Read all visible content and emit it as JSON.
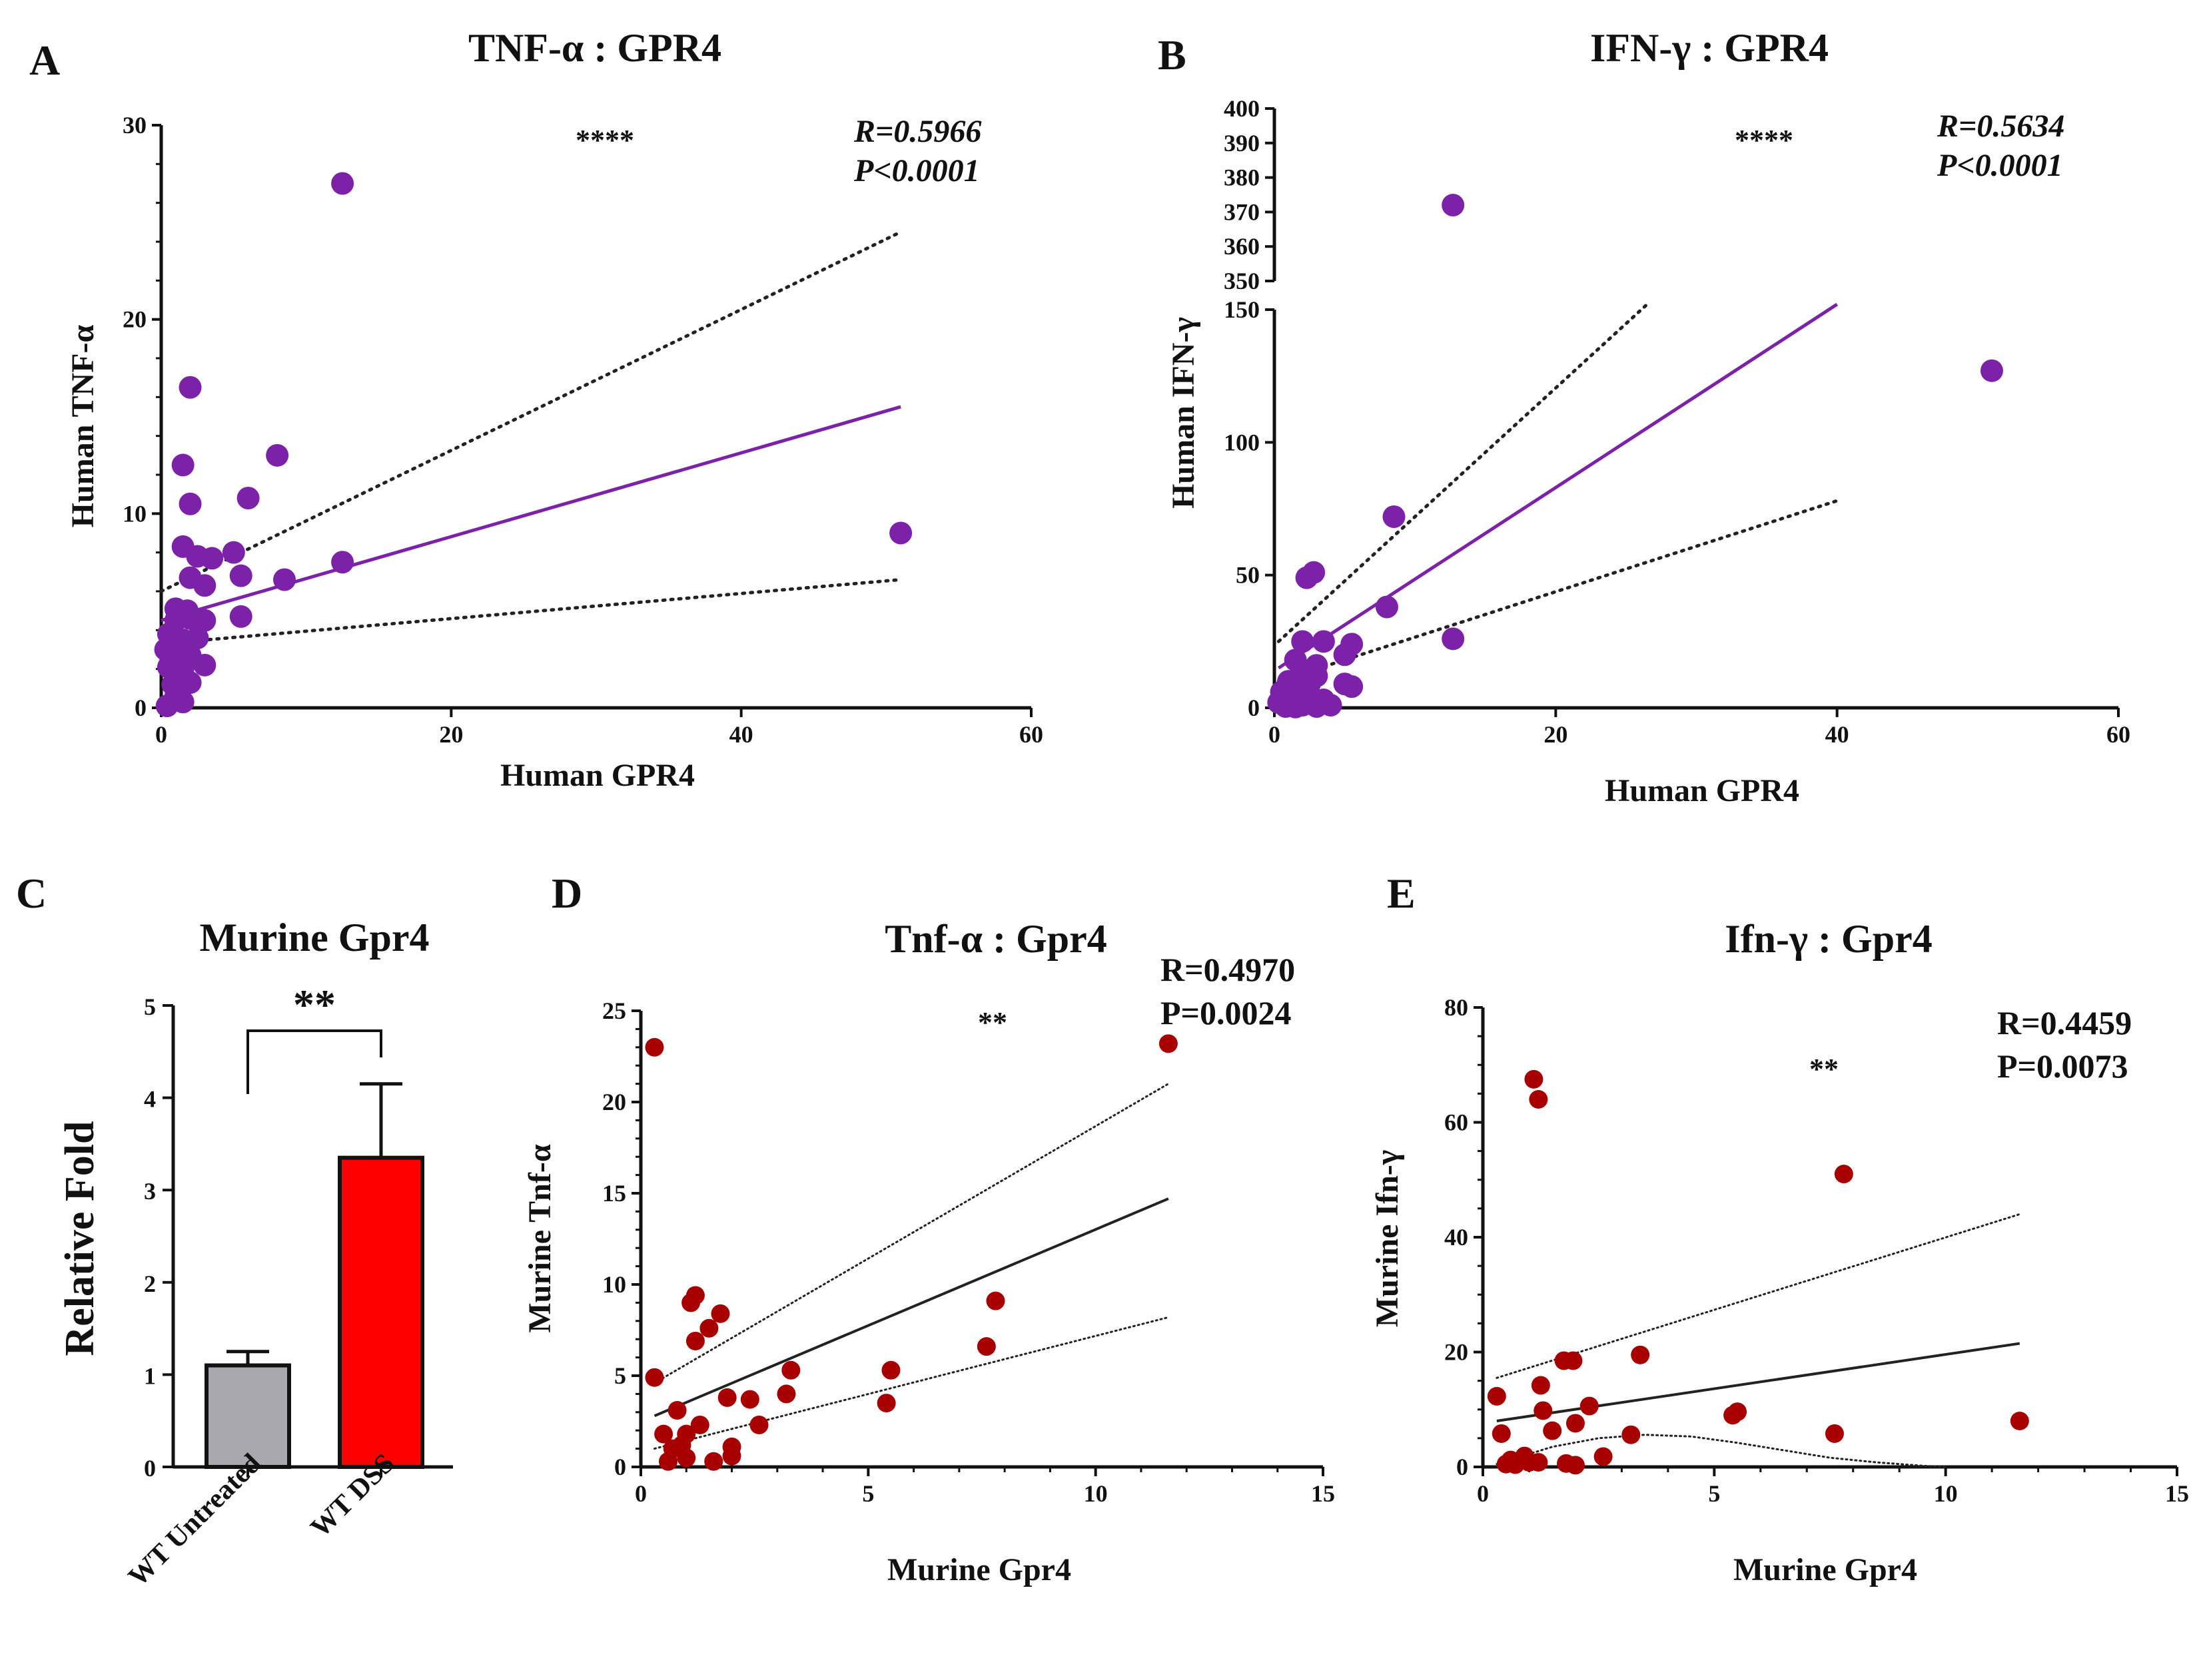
{
  "colors": {
    "purple": "#7B22A8",
    "red": "#A80000",
    "black": "#222222",
    "grey": "#A8A8AE",
    "bar_red": "#FF0000"
  },
  "chart_data": [
    {
      "id": "A",
      "type": "scatter",
      "panel_label": "A",
      "title": "TNF-α : GPR4",
      "xlabel": "Human GPR4",
      "ylabel": "Human TNF-α",
      "xlim": [
        0,
        60
      ],
      "ylim": [
        0,
        30
      ],
      "xticks": [
        0,
        20,
        40,
        60
      ],
      "yticks": [
        0,
        10,
        20,
        30
      ],
      "significance": "****",
      "stats": {
        "R": "R=0.5966",
        "P": "P<0.0001"
      },
      "fit": {
        "x": [
          0,
          51
        ],
        "y": [
          4.5,
          15.5
        ]
      },
      "ci_upper": {
        "x": [
          0,
          51
        ],
        "y": [
          6.0,
          24.5
        ]
      },
      "ci_lower": {
        "x": [
          0,
          51
        ],
        "y": [
          3.3,
          6.6
        ]
      },
      "points": [
        [
          12.5,
          27
        ],
        [
          2,
          16.5
        ],
        [
          1.5,
          12.5
        ],
        [
          2,
          10.5
        ],
        [
          8,
          13
        ],
        [
          6,
          10.8
        ],
        [
          1.5,
          8.3
        ],
        [
          2.5,
          7.8
        ],
        [
          3.5,
          7.7
        ],
        [
          5,
          8
        ],
        [
          12.5,
          7.5
        ],
        [
          8.5,
          6.6
        ],
        [
          5.5,
          6.8
        ],
        [
          2,
          6.7
        ],
        [
          3,
          6.3
        ],
        [
          1,
          5.1
        ],
        [
          1.8,
          5.0
        ],
        [
          1,
          4.5
        ],
        [
          2,
          4.6
        ],
        [
          3,
          4.5
        ],
        [
          5.5,
          4.7
        ],
        [
          0.5,
          3.8
        ],
        [
          1.5,
          3.5
        ],
        [
          2.5,
          3.6
        ],
        [
          0.3,
          3.0
        ],
        [
          1,
          2.8
        ],
        [
          2,
          2.7
        ],
        [
          0.5,
          2.1
        ],
        [
          1.5,
          2.0
        ],
        [
          3,
          2.2
        ],
        [
          0.8,
          1.2
        ],
        [
          2,
          1.3
        ],
        [
          1,
          0.6
        ],
        [
          1.5,
          0.3
        ],
        [
          0.4,
          0.1
        ],
        [
          1.2,
          0.5
        ],
        [
          51,
          9
        ]
      ]
    },
    {
      "id": "B",
      "type": "scatter",
      "panel_label": "B",
      "title": "IFN-γ : GPR4",
      "xlabel": "Human GPR4",
      "ylabel": "Human IFN-γ",
      "xlim": [
        0,
        60
      ],
      "ylim_lower": [
        0,
        150
      ],
      "ylim_upper": [
        350,
        400
      ],
      "xticks": [
        0,
        20,
        40,
        60
      ],
      "yticks_lower": [
        0,
        50,
        100,
        150
      ],
      "yticks_upper": [
        350,
        360,
        370,
        380,
        390,
        400
      ],
      "significance": "****",
      "stats": {
        "R": "R=0.5634",
        "P": "P<0.0001"
      },
      "fit": {
        "x": [
          0.3,
          40
        ],
        "y": [
          15,
          152
        ]
      },
      "ci_upper": {
        "x": [
          0.3,
          26.5
        ],
        "y": [
          25,
          152
        ]
      },
      "ci_lower": {
        "x": [
          0.3,
          40
        ],
        "y": [
          10,
          78
        ]
      },
      "points": [
        [
          12.7,
          372
        ],
        [
          51,
          127
        ],
        [
          8.5,
          72
        ],
        [
          2.3,
          49
        ],
        [
          2.8,
          51
        ],
        [
          8,
          38
        ],
        [
          12.7,
          26
        ],
        [
          2,
          25
        ],
        [
          3.5,
          25
        ],
        [
          5.5,
          24
        ],
        [
          1.5,
          18
        ],
        [
          3,
          16
        ],
        [
          5,
          20
        ],
        [
          2,
          14
        ],
        [
          3,
          12
        ],
        [
          1,
          10
        ],
        [
          2.5,
          9
        ],
        [
          5,
          9
        ],
        [
          5.5,
          8
        ],
        [
          0.5,
          6
        ],
        [
          1.5,
          5
        ],
        [
          2.5,
          4
        ],
        [
          3.5,
          3
        ],
        [
          0.3,
          2
        ],
        [
          1,
          1.5
        ],
        [
          2,
          1
        ],
        [
          4,
          1
        ],
        [
          0.8,
          0.5
        ],
        [
          1.5,
          0.3
        ],
        [
          3,
          0.5
        ]
      ]
    },
    {
      "id": "C",
      "type": "bar",
      "panel_label": "C",
      "title": "Murine Gpr4",
      "ylabel": "Relative Fold",
      "categories": [
        "WT Untreated",
        "WT DSS"
      ],
      "values": [
        1.1,
        3.35
      ],
      "errors": [
        0.15,
        0.8
      ],
      "ylim": [
        0,
        5
      ],
      "yticks": [
        0,
        1,
        2,
        3,
        4,
        5
      ],
      "significance": "**"
    },
    {
      "id": "D",
      "type": "scatter",
      "panel_label": "D",
      "title": "Tnf-α : Gpr4",
      "xlabel": "Murine Gpr4",
      "ylabel": "Murine Tnf-α",
      "xlim": [
        0,
        15
      ],
      "ylim": [
        0,
        25
      ],
      "xticks": [
        0,
        5,
        10,
        15
      ],
      "yticks": [
        0,
        5,
        10,
        15,
        20,
        25
      ],
      "significance": "**",
      "stats": {
        "R": "R=0.4970",
        "P": "P=0.0024"
      },
      "fit": {
        "x": [
          0.3,
          11.6
        ],
        "y": [
          2.8,
          14.7
        ]
      },
      "ci_upper": {
        "x": [
          0.3,
          11.6
        ],
        "y": [
          4.6,
          21
        ]
      },
      "ci_lower": {
        "x": [
          0.3,
          11.6
        ],
        "y": [
          1.0,
          8.2
        ]
      },
      "points": [
        [
          0.3,
          23
        ],
        [
          11.6,
          23.2
        ],
        [
          1.2,
          9.4
        ],
        [
          1.1,
          9.0
        ],
        [
          1.75,
          8.4
        ],
        [
          1.5,
          7.6
        ],
        [
          1.2,
          6.9
        ],
        [
          7.8,
          9.1
        ],
        [
          7.6,
          6.6
        ],
        [
          5.5,
          5.3
        ],
        [
          5.4,
          3.5
        ],
        [
          3.3,
          5.3
        ],
        [
          3.2,
          4.0
        ],
        [
          0.3,
          4.9
        ],
        [
          1.9,
          3.8
        ],
        [
          2.4,
          3.7
        ],
        [
          2.6,
          2.3
        ],
        [
          0.5,
          1.8
        ],
        [
          0.8,
          3.1
        ],
        [
          1.3,
          2.3
        ],
        [
          1.0,
          1.8
        ],
        [
          0.7,
          1.0
        ],
        [
          0.9,
          1.2
        ],
        [
          2.0,
          1.1
        ],
        [
          2.0,
          0.6
        ],
        [
          0.6,
          0.3
        ],
        [
          1.0,
          0.5
        ],
        [
          1.6,
          0.3
        ]
      ]
    },
    {
      "id": "E",
      "type": "scatter",
      "panel_label": "E",
      "title": "Ifn-γ : Gpr4",
      "xlabel": "Murine Gpr4",
      "ylabel": "Murine Ifn-γ",
      "xlim": [
        0,
        15
      ],
      "ylim": [
        0,
        80
      ],
      "xticks": [
        0,
        5,
        10,
        15
      ],
      "yticks": [
        0,
        20,
        40,
        60,
        80
      ],
      "significance": "**",
      "stats": {
        "R": "R=0.4459",
        "P": "P=0.0073"
      },
      "fit": {
        "x": [
          0.3,
          11.6
        ],
        "y": [
          8,
          21.5
        ]
      },
      "ci_upper": {
        "x": [
          0.3,
          11.6
        ],
        "y": [
          15.5,
          44
        ]
      },
      "ci_lower_curve": {
        "x": [
          0.3,
          1.5,
          2.5,
          3.5,
          4.5,
          5.5,
          6.5,
          7.5,
          8.5,
          9.5,
          10
        ],
        "y": [
          0.5,
          3.5,
          5,
          5.6,
          5.3,
          4.2,
          2.9,
          1.6,
          0.8,
          0.2,
          0
        ]
      },
      "points": [
        [
          1.1,
          67.5
        ],
        [
          1.2,
          64
        ],
        [
          7.8,
          51
        ],
        [
          1.75,
          18.5
        ],
        [
          1.95,
          18.5
        ],
        [
          3.4,
          19.5
        ],
        [
          1.25,
          14.2
        ],
        [
          0.3,
          12.3
        ],
        [
          1.3,
          9.8
        ],
        [
          2.3,
          10.6
        ],
        [
          5.5,
          9.6
        ],
        [
          5.4,
          9.0
        ],
        [
          11.6,
          8.0
        ],
        [
          2.0,
          7.6
        ],
        [
          1.5,
          6.3
        ],
        [
          3.2,
          5.6
        ],
        [
          0.4,
          5.8
        ],
        [
          7.6,
          5.8
        ],
        [
          0.6,
          1.2
        ],
        [
          0.9,
          1.9
        ],
        [
          1.0,
          0.8
        ],
        [
          2.6,
          1.8
        ],
        [
          1.8,
          0.6
        ],
        [
          2.0,
          0.3
        ],
        [
          1.2,
          0.8
        ],
        [
          0.7,
          0.4
        ],
        [
          0.5,
          0.5
        ]
      ]
    }
  ]
}
